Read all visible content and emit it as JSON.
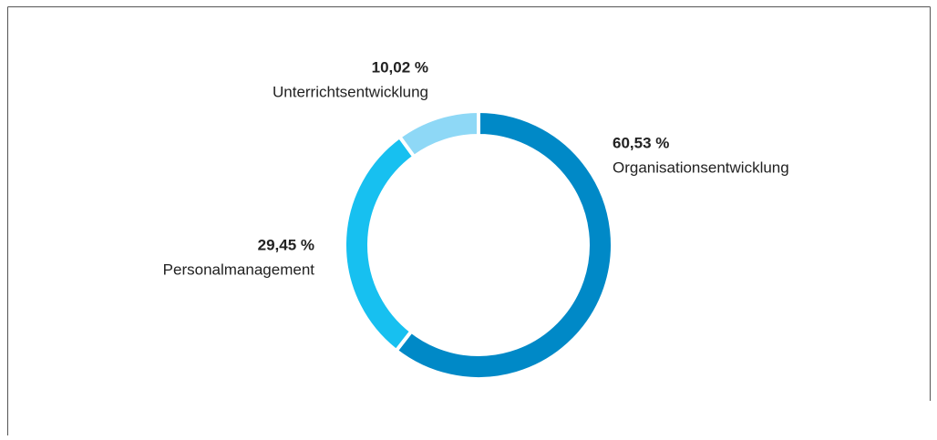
{
  "chart_data": {
    "type": "donut",
    "categories": [
      "Organisationsentwicklung",
      "Personalmanagement",
      "Unterrichtsentwicklung"
    ],
    "values": [
      60.53,
      29.45,
      10.02
    ],
    "value_labels": [
      "60,53 %",
      "29,45 %",
      "10,02 %"
    ],
    "colors": [
      "#0089c7",
      "#17c0f0",
      "#8ed8f6"
    ]
  }
}
